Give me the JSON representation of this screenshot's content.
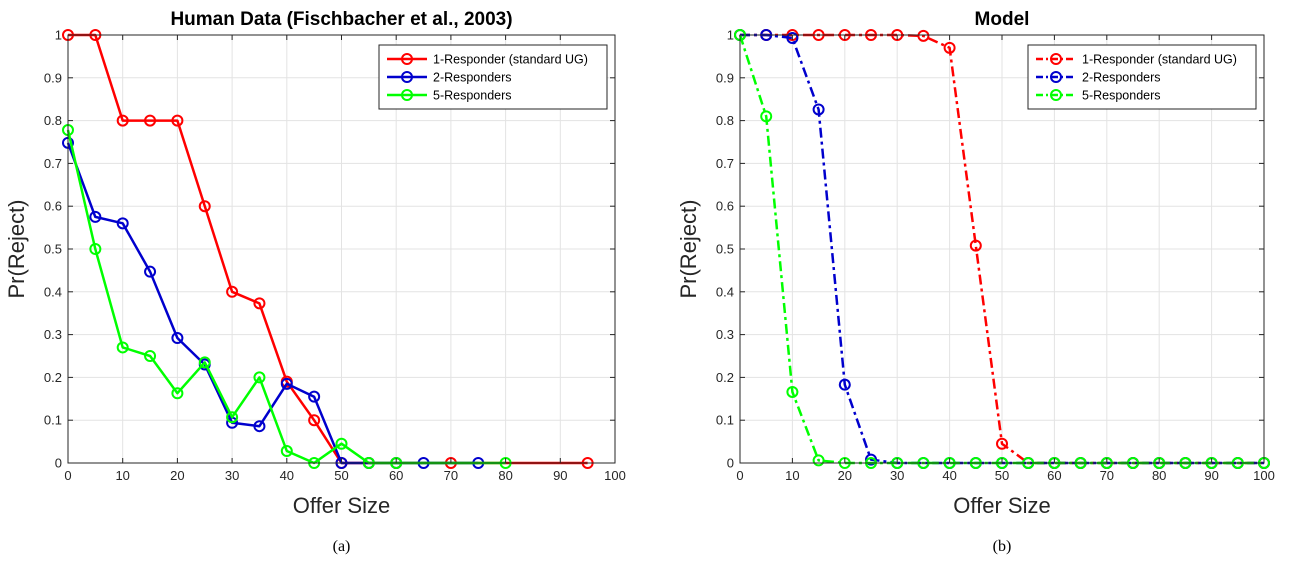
{
  "chart_data": [
    {
      "type": "line",
      "title": "Human Data (Fischbacher et al., 2003)",
      "xlabel": "Offer Size",
      "ylabel": "Pr(Reject)",
      "xlim": [
        0,
        100
      ],
      "ylim": [
        0,
        1
      ],
      "xticks": [
        0,
        10,
        20,
        30,
        40,
        50,
        60,
        70,
        80,
        90,
        100
      ],
      "yticks": [
        0,
        0.1,
        0.2,
        0.3,
        0.4,
        0.5,
        0.6,
        0.7,
        0.8,
        0.9,
        1
      ],
      "grid": true,
      "legend_position": "top-right",
      "caption": "(a)",
      "series": [
        {
          "name": "1-Responder (standard UG)",
          "color": "#ff0000",
          "line_style": "solid",
          "marker": "circle",
          "x": [
            0,
            5,
            10,
            15,
            20,
            25,
            30,
            35,
            40,
            45,
            50,
            55,
            60,
            70,
            95
          ],
          "y": [
            1,
            1,
            0.8,
            0.8,
            0.8,
            0.6,
            0.4,
            0.373,
            0.19,
            0.1,
            0,
            0,
            0,
            0,
            0
          ]
        },
        {
          "name": "2-Responders",
          "color": "#0000cd",
          "line_style": "solid",
          "marker": "circle",
          "x": [
            0,
            5,
            10,
            15,
            20,
            25,
            30,
            35,
            40,
            45,
            50,
            55,
            60,
            65,
            75
          ],
          "y": [
            0.748,
            0.575,
            0.56,
            0.447,
            0.292,
            0.23,
            0.094,
            0.086,
            0.185,
            0.155,
            0,
            0,
            0,
            0,
            0
          ]
        },
        {
          "name": "5-Responders",
          "color": "#00ff00",
          "line_style": "solid",
          "marker": "circle",
          "x": [
            0,
            5,
            10,
            15,
            20,
            25,
            30,
            35,
            40,
            45,
            50,
            55,
            60,
            80
          ],
          "y": [
            0.778,
            0.5,
            0.27,
            0.25,
            0.163,
            0.235,
            0.107,
            0.2,
            0.028,
            0,
            0.045,
            0,
            0,
            0
          ]
        }
      ]
    },
    {
      "type": "line",
      "title": "Model",
      "xlabel": "Offer Size",
      "ylabel": "Pr(Reject)",
      "xlim": [
        0,
        100
      ],
      "ylim": [
        0,
        1
      ],
      "xticks": [
        0,
        10,
        20,
        30,
        40,
        50,
        60,
        70,
        80,
        90,
        100
      ],
      "yticks": [
        0,
        0.1,
        0.2,
        0.3,
        0.4,
        0.5,
        0.6,
        0.7,
        0.8,
        0.9,
        1
      ],
      "grid": true,
      "legend_position": "top-right",
      "caption": "(b)",
      "series": [
        {
          "name": "1-Responder (standard UG)",
          "color": "#ff0000",
          "line_style": "dashdot",
          "marker": "circle",
          "x": [
            0,
            5,
            10,
            15,
            20,
            25,
            30,
            35,
            40,
            45,
            50,
            55,
            60,
            65,
            70,
            75,
            80,
            85,
            90,
            95,
            100
          ],
          "y": [
            1,
            1,
            1,
            1,
            1,
            1,
            1,
            0.998,
            0.97,
            0.508,
            0.045,
            0,
            0,
            0,
            0,
            0,
            0,
            0,
            0,
            0,
            0
          ]
        },
        {
          "name": "2-Responders",
          "color": "#0000cd",
          "line_style": "dashdot",
          "marker": "circle",
          "x": [
            0,
            5,
            10,
            15,
            20,
            25,
            30,
            35,
            40,
            45,
            50,
            55,
            60,
            65,
            70,
            75,
            80,
            85,
            90,
            95,
            100
          ],
          "y": [
            1,
            1,
            0.993,
            0.826,
            0.183,
            0.008,
            0,
            0,
            0,
            0,
            0,
            0,
            0,
            0,
            0,
            0,
            0,
            0,
            0,
            0,
            0
          ]
        },
        {
          "name": "5-Responders",
          "color": "#00ff00",
          "line_style": "dashdot",
          "marker": "circle",
          "x": [
            0,
            5,
            10,
            15,
            20,
            25,
            30,
            35,
            40,
            45,
            50,
            55,
            60,
            65,
            70,
            75,
            80,
            85,
            90,
            95,
            100
          ],
          "y": [
            1,
            0.81,
            0.166,
            0.006,
            0,
            0,
            0,
            0,
            0,
            0,
            0,
            0,
            0,
            0,
            0,
            0,
            0,
            0,
            0,
            0,
            0
          ]
        }
      ]
    }
  ]
}
